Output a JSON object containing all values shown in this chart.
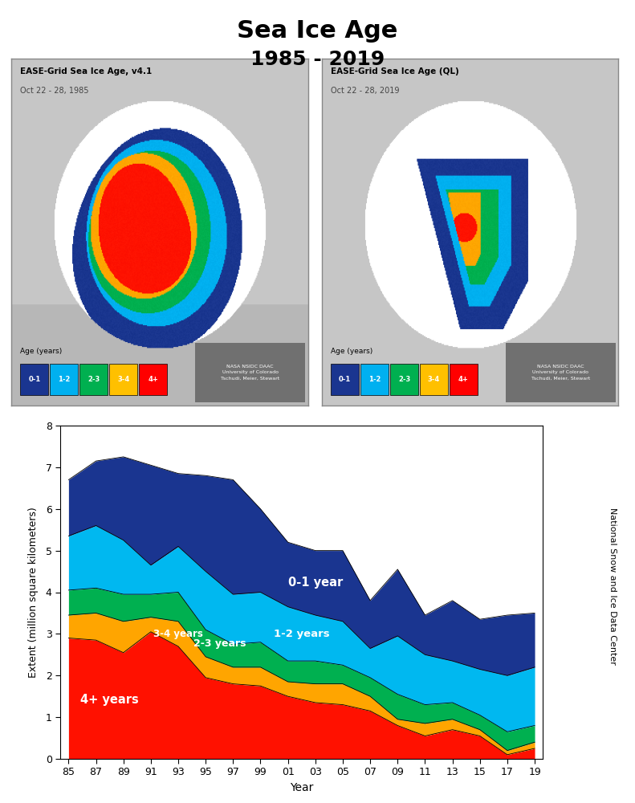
{
  "title": "Sea Ice Age",
  "subtitle": "1985 - 2019",
  "title_fontsize": 22,
  "subtitle_fontsize": 18,
  "map_left_title": "EASE-Grid Sea Ice Age, v4.1",
  "map_left_date": "Oct 22 - 28, 1985",
  "map_right_title": "EASE-Grid Sea Ice Age (QL)",
  "map_right_date": "Oct 22 - 28, 2019",
  "legend_labels": [
    "0-1",
    "1-2",
    "2-3",
    "3-4",
    "4+"
  ],
  "legend_colors": [
    "#1a3590",
    "#00b0f0",
    "#00b050",
    "#ffc000",
    "#ff0000"
  ],
  "ylabel": "Extent (million square kilometers)",
  "xlabel": "Year",
  "right_label": "National Snow and Ice Data Center",
  "ylim": [
    0,
    8
  ],
  "xtick_labels": [
    "85",
    "87",
    "89",
    "91",
    "93",
    "95",
    "97",
    "99",
    "01",
    "03",
    "05",
    "07",
    "09",
    "11",
    "13",
    "15",
    "17",
    "19"
  ],
  "colors_stack": [
    "#ff1100",
    "#ffa500",
    "#00b050",
    "#00b8f0",
    "#1a3590"
  ],
  "layer_labels": [
    "4+ years",
    "3-4 years",
    "2-3 years",
    "1-2 years",
    "0-1 year"
  ],
  "data_4plus": [
    2.9,
    2.85,
    2.55,
    3.05,
    2.7,
    1.95,
    1.8,
    1.75,
    1.5,
    1.35,
    1.3,
    1.15,
    0.8,
    0.55,
    0.7,
    0.55,
    0.1,
    0.25
  ],
  "data_34": [
    0.55,
    0.65,
    0.75,
    0.35,
    0.6,
    0.5,
    0.4,
    0.45,
    0.35,
    0.45,
    0.5,
    0.35,
    0.15,
    0.3,
    0.25,
    0.15,
    0.1,
    0.15
  ],
  "data_23": [
    0.6,
    0.6,
    0.65,
    0.55,
    0.7,
    0.65,
    0.55,
    0.6,
    0.5,
    0.55,
    0.45,
    0.45,
    0.6,
    0.45,
    0.4,
    0.35,
    0.45,
    0.4
  ],
  "data_12": [
    1.3,
    1.5,
    1.3,
    0.7,
    1.1,
    1.4,
    1.2,
    1.2,
    1.3,
    1.1,
    1.05,
    0.7,
    1.4,
    1.2,
    1.0,
    1.1,
    1.35,
    1.4
  ],
  "data_01": [
    1.35,
    1.55,
    2.0,
    2.4,
    1.75,
    2.3,
    2.75,
    2.0,
    1.55,
    1.55,
    1.7,
    1.15,
    1.6,
    0.95,
    1.45,
    1.2,
    1.45,
    1.3
  ],
  "map_bg_color": "#c8c8c8",
  "ocean_color": "#ffffff",
  "land_color": "#c0c0c0",
  "credit_text": "NASA NSIDC DAAC\nUniversity of Colorado\nTschudi, Meier, Stewart"
}
